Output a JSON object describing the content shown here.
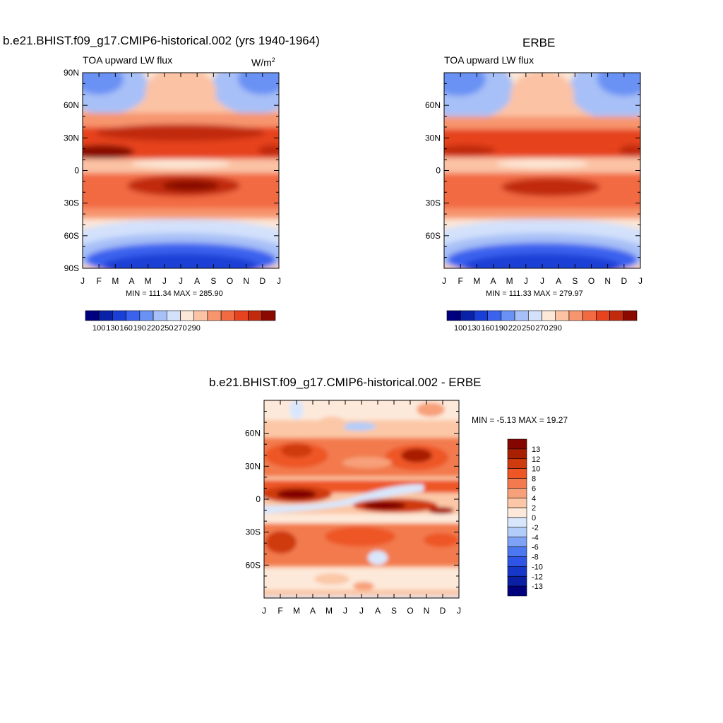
{
  "colors": {
    "abs_palette": [
      "#00007f",
      "#0a22a8",
      "#1a3fd6",
      "#3a62ee",
      "#6a92f4",
      "#a7c0f7",
      "#d3e1fb",
      "#fde7d6",
      "#fbc2a4",
      "#f7956e",
      "#f26a42",
      "#e6431e",
      "#c12a0c",
      "#8a0a00"
    ],
    "diff_palette": [
      "#00007f",
      "#0a1fa3",
      "#1737c9",
      "#2f55e6",
      "#4b78f1",
      "#7ea3f6",
      "#b2cdfa",
      "#d9e7fd",
      "#fde9da",
      "#fbc7a6",
      "#f7a079",
      "#f27a4e",
      "#ee5626",
      "#cf3a0e",
      "#a91f02",
      "#830600"
    ]
  },
  "month_labels": [
    "J",
    "F",
    "M",
    "A",
    "M",
    "J",
    "J",
    "A",
    "S",
    "O",
    "N",
    "D",
    "J"
  ],
  "panel1": {
    "title": "b.e21.BHIST.f09_g17.CMIP6-historical.002 (yrs 1940-1964)",
    "left_label": "TOA upward LW flux",
    "units_base": "W/m",
    "units_exp": "2",
    "lat_labels": [
      "90N",
      "60N",
      "30N",
      "0",
      "30S",
      "60S",
      "90S"
    ],
    "stats": "MIN = 111.34 MAX = 285.90",
    "colorbar_labels": [
      "100",
      "130",
      "160",
      "190",
      "220",
      "250",
      "270",
      "290"
    ]
  },
  "panel2": {
    "title": "ERBE",
    "left_label": "TOA upward LW flux",
    "lat_labels": [
      "60N",
      "30N",
      "0",
      "30S",
      "60S"
    ],
    "stats": "MIN = 111.33 MAX = 279.97",
    "colorbar_labels": [
      "100",
      "130",
      "160",
      "190",
      "220",
      "250",
      "270",
      "290"
    ]
  },
  "panel3": {
    "title": "b.e21.BHIST.f09_g17.CMIP6-historical.002 - ERBE",
    "lat_labels": [
      "60N",
      "30N",
      "0",
      "30S",
      "60S"
    ],
    "stats": "MIN =  -5.13 MAX =  19.27",
    "colorbar_labels": [
      "13",
      "12",
      "10",
      "8",
      "6",
      "4",
      "2",
      "0",
      "-2",
      "-4",
      "-6",
      "-8",
      "-10",
      "-12",
      "-13"
    ]
  },
  "chart_data": [
    {
      "type": "heatmap",
      "title": "b.e21.BHIST.f09_g17.CMIP6-historical.002 (yrs 1940-1964)",
      "subtitle": "TOA upward LW flux",
      "units": "W/m2",
      "x": [
        "J",
        "F",
        "M",
        "A",
        "M",
        "J",
        "J",
        "A",
        "S",
        "O",
        "N",
        "D",
        "J"
      ],
      "y_range": [
        -90,
        90
      ],
      "min": 111.34,
      "max": 285.9,
      "levels": [
        100,
        115,
        130,
        145,
        160,
        175,
        190,
        205,
        220,
        235,
        250,
        260,
        270,
        280,
        290
      ],
      "features": [
        {
          "lat": 17,
          "month": "F",
          "value": 285
        },
        {
          "lat": -12,
          "month": "J",
          "value": 275
        },
        {
          "lat": -80,
          "month": "J",
          "value": 112
        },
        {
          "lat": 85,
          "month": "J",
          "value": 170
        }
      ]
    },
    {
      "type": "heatmap",
      "title": "ERBE",
      "subtitle": "TOA upward LW flux",
      "x": [
        "J",
        "F",
        "M",
        "A",
        "M",
        "J",
        "J",
        "A",
        "S",
        "O",
        "N",
        "D",
        "J"
      ],
      "y_range": [
        -90,
        90
      ],
      "min": 111.33,
      "max": 279.97,
      "levels": [
        100,
        115,
        130,
        145,
        160,
        175,
        190,
        205,
        220,
        235,
        250,
        260,
        270,
        280,
        290
      ],
      "features": [
        {
          "lat": 17,
          "month": "F",
          "value": 275
        },
        {
          "lat": -12,
          "month": "J",
          "value": 270
        },
        {
          "lat": -80,
          "month": "J",
          "value": 115
        },
        {
          "lat": 85,
          "month": "J",
          "value": 165
        }
      ]
    },
    {
      "type": "heatmap",
      "title": "b.e21.BHIST.f09_g17.CMIP6-historical.002 - ERBE",
      "x": [
        "J",
        "F",
        "M",
        "A",
        "M",
        "J",
        "J",
        "A",
        "S",
        "O",
        "N",
        "D",
        "J"
      ],
      "y_range": [
        -90,
        90
      ],
      "min": -5.13,
      "max": 19.27,
      "levels": [
        -13,
        -12,
        -10,
        -8,
        -6,
        -4,
        -2,
        0,
        2,
        4,
        6,
        8,
        10,
        12,
        13
      ],
      "features": [
        {
          "lat": 5,
          "month": "M",
          "value": 14
        },
        {
          "lat": -5,
          "month": "A",
          "value": 13
        },
        {
          "lat": 40,
          "month": "O",
          "value": 13
        },
        {
          "lat": 0,
          "month": "A",
          "value": -2
        },
        {
          "lat": 45,
          "month": "M",
          "value": 12
        }
      ]
    }
  ]
}
